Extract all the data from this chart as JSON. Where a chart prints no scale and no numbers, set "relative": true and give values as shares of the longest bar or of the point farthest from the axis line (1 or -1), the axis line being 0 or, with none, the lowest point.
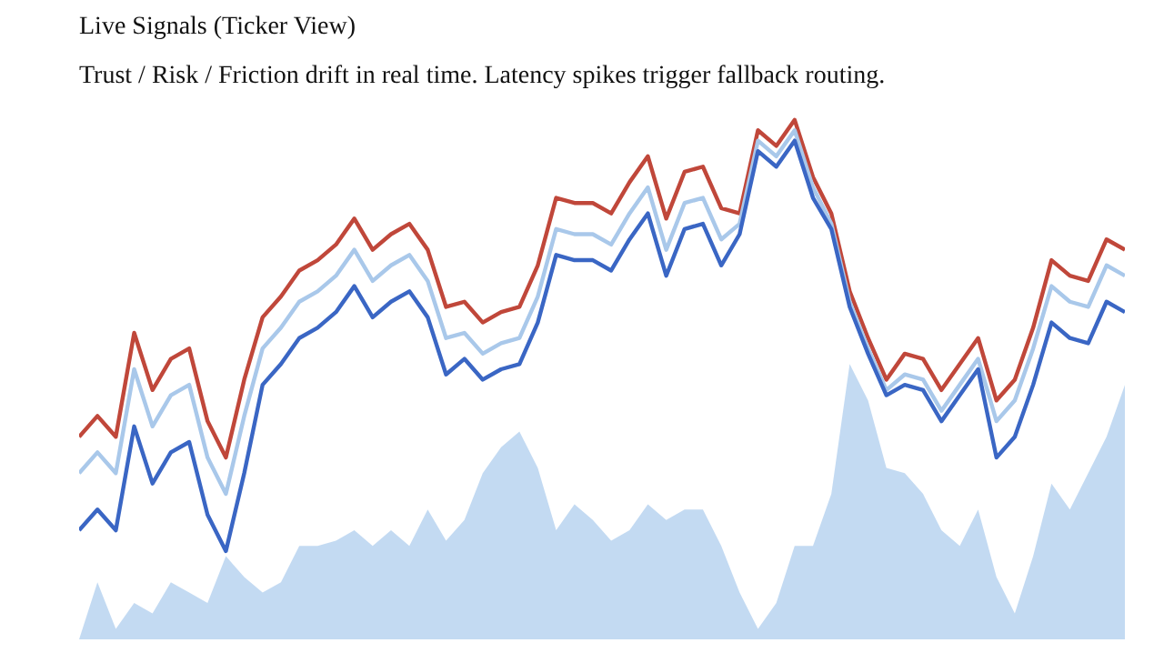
{
  "chart_data": {
    "type": "line",
    "relative": true,
    "title": "Live Signals (Ticker View)",
    "subtitle": "Trust / Risk / Friction drift in real time. Latency spikes trigger fallback routing.",
    "categories": [
      null,
      null,
      null,
      null,
      null,
      null,
      null,
      null,
      null,
      null,
      null,
      null,
      null,
      null,
      null,
      null,
      null,
      null,
      null,
      null,
      null,
      null,
      null,
      null,
      null,
      null,
      null,
      null,
      null,
      null,
      null,
      null,
      null,
      null,
      null,
      null,
      null,
      null,
      null,
      null,
      null,
      null,
      null,
      null,
      null,
      null,
      null,
      null,
      null,
      null,
      null,
      null,
      null,
      null,
      null,
      null,
      null,
      null
    ],
    "series": [
      {
        "type": "area",
        "color": "#b8d4f0",
        "values": [
          0,
          0.11,
          0.02,
          0.07,
          0.05,
          0.11,
          0.09,
          0.07,
          0.16,
          0.12,
          0.09,
          0.11,
          0.18,
          0.18,
          0.19,
          0.21,
          0.18,
          0.21,
          0.18,
          0.25,
          0.19,
          0.23,
          0.32,
          0.37,
          0.4,
          0.33,
          0.21,
          0.26,
          0.23,
          0.19,
          0.21,
          0.26,
          0.23,
          0.25,
          0.25,
          0.18,
          0.09,
          0.02,
          0.07,
          0.18,
          0.18,
          0.28,
          0.53,
          0.46,
          0.33,
          0.32,
          0.28,
          0.21,
          0.18,
          0.25,
          0.12,
          0.05,
          0.16,
          0.3,
          0.25,
          0.32,
          0.39,
          0.49
        ]
      },
      {
        "color": "#c0473a",
        "values": [
          0.39,
          0.43,
          0.39,
          0.59,
          0.48,
          0.54,
          0.56,
          0.42,
          0.35,
          0.5,
          0.62,
          0.66,
          0.71,
          0.73,
          0.76,
          0.81,
          0.75,
          0.78,
          0.8,
          0.75,
          0.64,
          0.65,
          0.61,
          0.63,
          0.64,
          0.72,
          0.85,
          0.84,
          0.84,
          0.82,
          0.88,
          0.93,
          0.81,
          0.9,
          0.91,
          0.83,
          0.82,
          0.98,
          0.95,
          1.0,
          0.89,
          0.82,
          0.67,
          0.58,
          0.5,
          0.55,
          0.54,
          0.48,
          0.53,
          0.58,
          0.46,
          0.5,
          0.6,
          0.73,
          0.7,
          0.69,
          0.77,
          0.75
        ]
      },
      {
        "color": "#a9c8ea",
        "values": [
          0.32,
          0.36,
          0.32,
          0.52,
          0.41,
          0.47,
          0.49,
          0.35,
          0.28,
          0.43,
          0.56,
          0.6,
          0.65,
          0.67,
          0.7,
          0.75,
          0.69,
          0.72,
          0.74,
          0.69,
          0.58,
          0.59,
          0.55,
          0.57,
          0.58,
          0.66,
          0.79,
          0.78,
          0.78,
          0.76,
          0.82,
          0.87,
          0.75,
          0.84,
          0.85,
          0.77,
          0.8,
          0.96,
          0.93,
          0.98,
          0.87,
          0.8,
          0.65,
          0.56,
          0.48,
          0.51,
          0.5,
          0.44,
          0.49,
          0.54,
          0.42,
          0.46,
          0.56,
          0.68,
          0.65,
          0.64,
          0.72,
          0.7
        ]
      },
      {
        "color": "#3a66c4",
        "values": [
          0.21,
          0.25,
          0.21,
          0.41,
          0.3,
          0.36,
          0.38,
          0.24,
          0.17,
          0.32,
          0.49,
          0.53,
          0.58,
          0.6,
          0.63,
          0.68,
          0.62,
          0.65,
          0.67,
          0.62,
          0.51,
          0.54,
          0.5,
          0.52,
          0.53,
          0.61,
          0.74,
          0.73,
          0.73,
          0.71,
          0.77,
          0.82,
          0.7,
          0.79,
          0.8,
          0.72,
          0.78,
          0.94,
          0.91,
          0.96,
          0.85,
          0.79,
          0.64,
          0.55,
          0.47,
          0.49,
          0.48,
          0.42,
          0.47,
          0.52,
          0.35,
          0.39,
          0.49,
          0.61,
          0.58,
          0.57,
          0.65,
          0.63
        ]
      }
    ]
  }
}
